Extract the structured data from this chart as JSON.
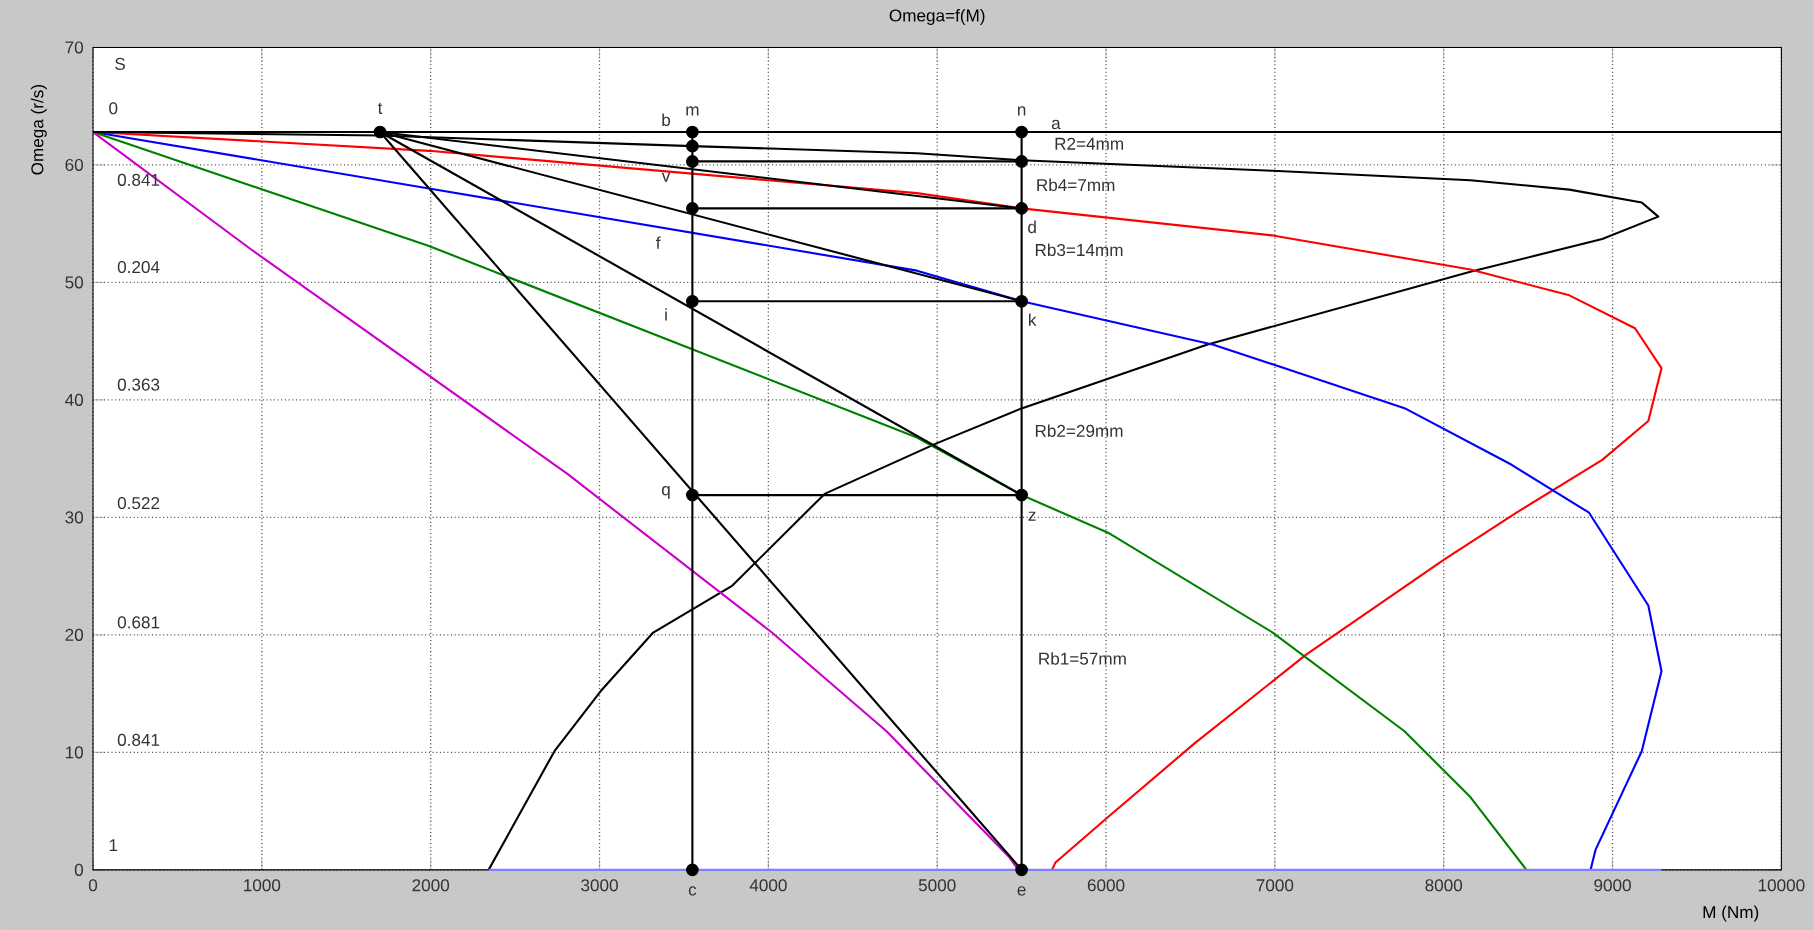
{
  "chart_data": {
    "type": "line",
    "title": "Omega=f(M)",
    "xlabel": "M (Nm)",
    "ylabel": "Omega (r/s)",
    "xlim": [
      0,
      10000
    ],
    "ylim": [
      0,
      70
    ],
    "xticks": [
      0,
      1000,
      2000,
      3000,
      4000,
      5000,
      6000,
      7000,
      8000,
      9000,
      10000
    ],
    "yticks": [
      0,
      10,
      20,
      30,
      40,
      50,
      60,
      70
    ],
    "grid": true,
    "series": [
      {
        "color": "#000000",
        "x": [
          0,
          1700,
          3550,
          4880,
          5500,
          6987,
          8158,
          8744,
          9173,
          9271,
          8939,
          8158,
          6597,
          5504,
          4996,
          4333,
          3787,
          3318,
          3006,
          2733,
          2343
        ],
        "values": [
          62.8,
          62.5,
          61.6,
          61.0,
          60.4,
          59.5,
          58.7,
          57.9,
          56.8,
          55.6,
          53.7,
          50.9,
          44.7,
          39.3,
          36.3,
          32.0,
          24.2,
          20.2,
          15.2,
          10.1,
          0
        ]
      },
      {
        "color": "#ff0000",
        "x": [
          0,
          1990,
          4880,
          5500,
          6987,
          8158,
          8744,
          9133,
          9290,
          9212,
          8939,
          8431,
          8002,
          7183,
          6519,
          6012,
          5699,
          5680
        ],
        "values": [
          62.8,
          61.2,
          57.6,
          56.3,
          54.0,
          51.1,
          48.9,
          46.1,
          42.7,
          38.2,
          34.9,
          30.4,
          26.4,
          18.3,
          10.7,
          4.5,
          0.6,
          0
        ]
      },
      {
        "color": "#0000ff",
        "x": [
          0,
          1990,
          4880,
          5500,
          6636,
          7768,
          8400,
          8861,
          9212,
          9290,
          9173,
          8899,
          8870
        ],
        "values": [
          62.8,
          58.0,
          51.0,
          48.4,
          44.7,
          39.3,
          34.5,
          30.4,
          22.5,
          16.9,
          10.1,
          1.7,
          0
        ]
      },
      {
        "color": "#008000",
        "x": [
          0,
          1990,
          4880,
          5500,
          6012,
          6987,
          7768,
          8158,
          8490
        ],
        "values": [
          62.8,
          53.1,
          36.8,
          31.9,
          28.7,
          20.2,
          11.8,
          6.2,
          0
        ]
      },
      {
        "color": "#cc00cc",
        "x": [
          0,
          937,
          2810,
          4021,
          4700,
          5426,
          5480
        ],
        "values": [
          62.8,
          52.8,
          33.7,
          20.2,
          11.8,
          1.1,
          0
        ]
      },
      {
        "color": "#8080ff",
        "x": [
          2343,
          9290
        ],
        "values": [
          0,
          0
        ]
      },
      {
        "color": "#000000",
        "x": [
          0,
          10000
        ],
        "values": [
          62.8,
          62.8
        ]
      },
      {
        "color": "#000000",
        "x": [
          3550,
          3550
        ],
        "values": [
          0,
          62.8
        ]
      },
      {
        "color": "#000000",
        "x": [
          5500,
          5500
        ],
        "values": [
          0,
          62.8
        ]
      },
      {
        "color": "#000000",
        "x": [
          1700,
          5500
        ],
        "values": [
          62.8,
          0
        ]
      },
      {
        "color": "#000000",
        "x": [
          1700,
          5500
        ],
        "values": [
          62.8,
          31.9
        ]
      },
      {
        "color": "#000000",
        "x": [
          1700,
          5500
        ],
        "values": [
          62.8,
          48.4
        ]
      },
      {
        "color": "#000000",
        "x": [
          1700,
          5500
        ],
        "values": [
          62.8,
          56.3
        ]
      },
      {
        "color": "#000000",
        "x": [
          3550,
          5500
        ],
        "values": [
          31.9,
          31.9
        ]
      },
      {
        "color": "#000000",
        "x": [
          3550,
          5500
        ],
        "values": [
          48.4,
          48.4
        ]
      },
      {
        "color": "#000000",
        "x": [
          3550,
          5500
        ],
        "values": [
          56.3,
          56.3
        ]
      },
      {
        "color": "#000000",
        "x": [
          3550,
          5500
        ],
        "values": [
          60.3,
          60.3
        ]
      },
      {
        "type": "scatter",
        "marker": "circle",
        "color": "#000000",
        "x": [
          1700,
          3550,
          5500,
          3550,
          5500,
          3550,
          5500,
          3550,
          3550,
          5500,
          3550,
          5500,
          3550,
          5500
        ],
        "values": [
          62.8,
          62.8,
          62.8,
          61.6,
          60.3,
          60.3,
          56.3,
          56.3,
          48.4,
          48.4,
          31.9,
          31.9,
          0,
          0
        ],
        "value_labels": [
          "t",
          "m",
          "n",
          "b",
          "a",
          "v",
          "d",
          "f",
          "i",
          "k",
          "q",
          "z",
          "c",
          "e"
        ]
      }
    ],
    "annotations": [
      "S",
      "0",
      "0.841",
      "0.204",
      "0.363",
      "0.522",
      "0.681",
      "0.841",
      "1",
      "R2=4mm",
      "Rb4=7mm",
      "Rb3=14mm",
      "Rb2=29mm",
      "Rb1=57mm"
    ]
  }
}
